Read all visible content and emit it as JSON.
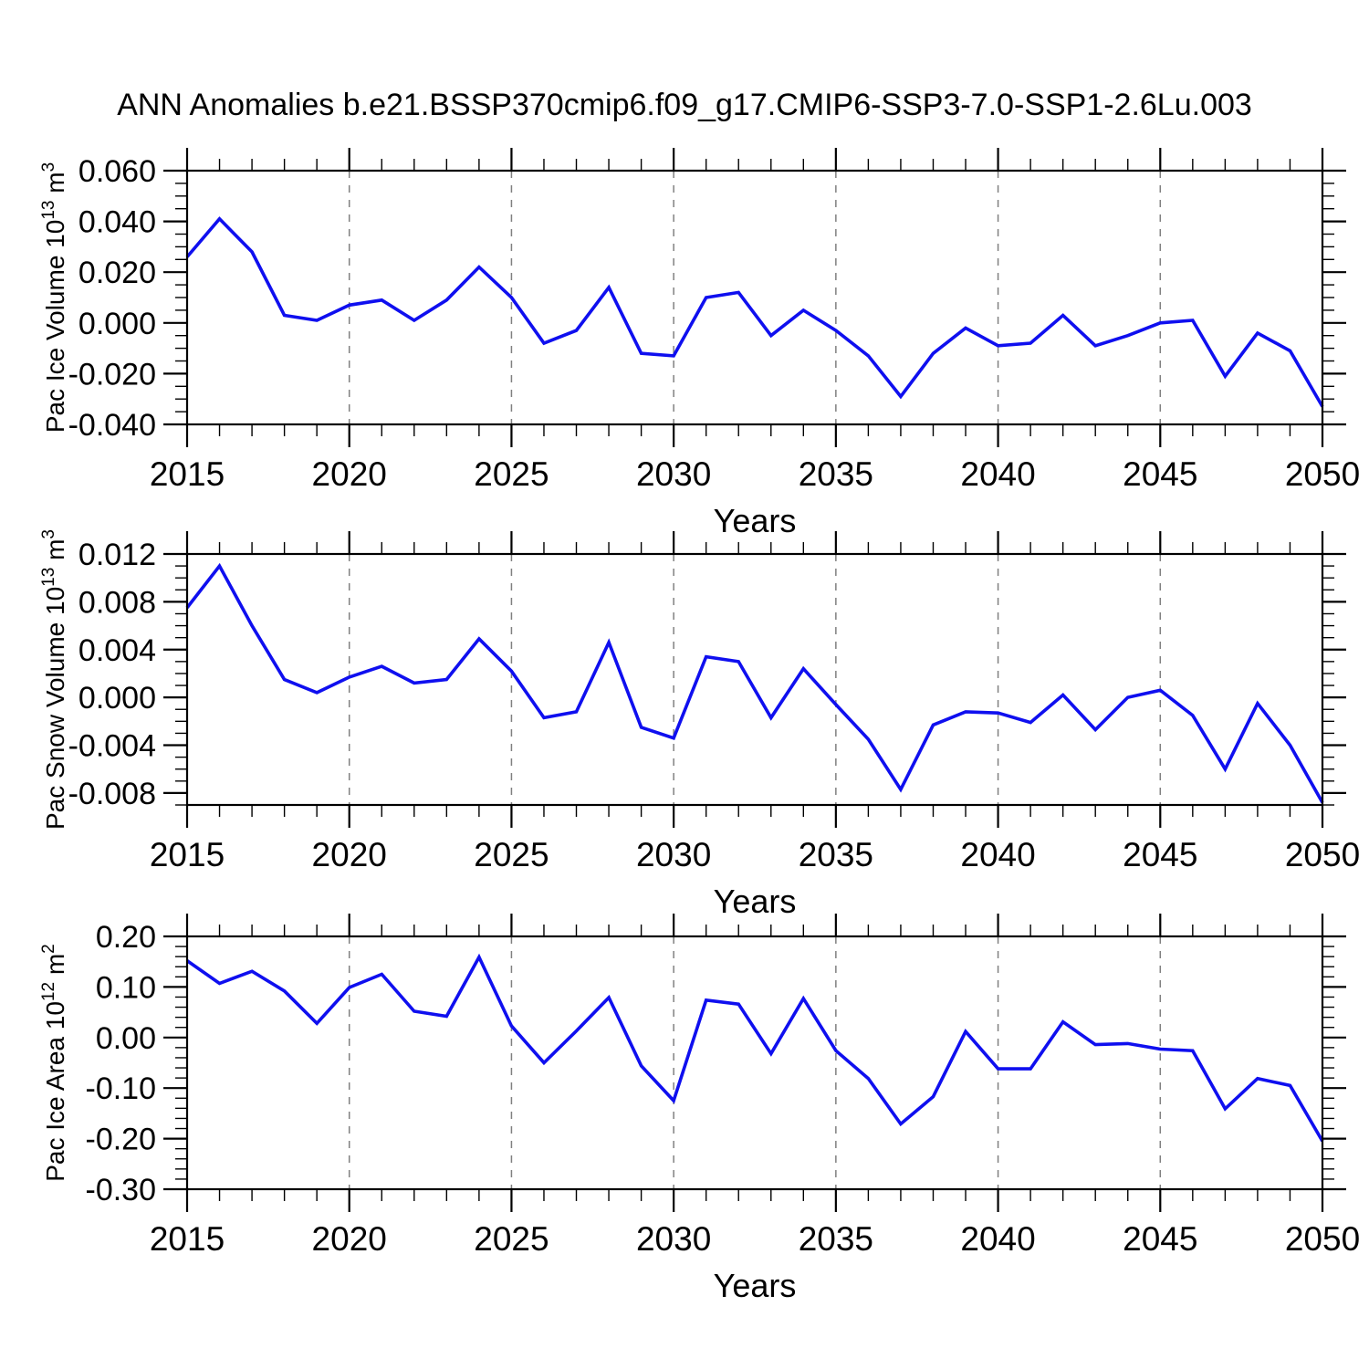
{
  "chart_data": {
    "type": "line",
    "title": "ANN Anomalies b.e21.BSSP370cmip6.f09_g17.CMIP6-SSP3-7.0-SSP1-2.6Lu.003",
    "x_label": "Years",
    "x": [
      2015,
      2016,
      2017,
      2018,
      2019,
      2020,
      2021,
      2022,
      2023,
      2024,
      2025,
      2026,
      2027,
      2028,
      2029,
      2030,
      2031,
      2032,
      2033,
      2034,
      2035,
      2036,
      2037,
      2038,
      2039,
      2040,
      2041,
      2042,
      2043,
      2044,
      2045,
      2046,
      2047,
      2048,
      2049,
      2050
    ],
    "xlim": [
      2015,
      2050
    ],
    "x_major_ticks": [
      2015,
      2020,
      2025,
      2030,
      2035,
      2040,
      2045,
      2050
    ],
    "x_tick_labels": [
      "2015",
      "2020",
      "2025",
      "2030",
      "2035",
      "2040",
      "2045",
      "2050"
    ],
    "x_minor_step": 1,
    "grid_years": [
      2020,
      2025,
      2030,
      2035,
      2040,
      2045
    ],
    "grid_on": true,
    "legend": "none",
    "line_color": "#0f0fef",
    "grid_color": "#808080",
    "axis_color": "#000000",
    "panels": [
      {
        "name": "pac-ice-volume",
        "ylabel": "Pac Ice Volume 10^13 m^3",
        "ylabel_parts": [
          {
            "t": "Pac Ice Volume 10",
            "sup": false
          },
          {
            "t": "13",
            "sup": true
          },
          {
            "t": " m",
            "sup": false
          },
          {
            "t": "3",
            "sup": true
          }
        ],
        "ylim": [
          -0.04,
          0.06
        ],
        "y_major_ticks": [
          0.06,
          0.04,
          0.02,
          0.0,
          -0.02,
          -0.04
        ],
        "y_tick_labels": [
          "0.060",
          "0.040",
          "0.020",
          "0.000",
          "-0.020",
          "-0.040"
        ],
        "y_minor_step": 0.005,
        "values": [
          0.026,
          0.041,
          0.028,
          0.003,
          0.001,
          0.007,
          0.009,
          0.001,
          0.009,
          0.022,
          0.01,
          -0.008,
          -0.003,
          0.014,
          -0.012,
          -0.013,
          0.01,
          0.012,
          -0.005,
          0.005,
          -0.003,
          -0.013,
          -0.029,
          -0.012,
          -0.002,
          -0.009,
          -0.008,
          0.003,
          -0.009,
          -0.005,
          0.0,
          0.001,
          -0.021,
          -0.004,
          -0.011,
          -0.033
        ]
      },
      {
        "name": "pac-snow-volume",
        "ylabel": "Pac Snow Volume 10^13 m^3",
        "ylabel_parts": [
          {
            "t": "Pac Snow Volume 10",
            "sup": false
          },
          {
            "t": "13",
            "sup": true
          },
          {
            "t": " m",
            "sup": false
          },
          {
            "t": "3",
            "sup": true
          }
        ],
        "ylim": [
          -0.009,
          0.012
        ],
        "y_major_ticks": [
          0.012,
          0.008,
          0.004,
          0.0,
          -0.004,
          -0.008
        ],
        "y_tick_labels": [
          "0.012",
          "0.008",
          "0.004",
          "0.000",
          "-0.004",
          "-0.008"
        ],
        "y_minor_step": 0.001,
        "values": [
          0.0075,
          0.011,
          0.006,
          0.0015,
          0.0004,
          0.0017,
          0.0026,
          0.0012,
          0.0015,
          0.0049,
          0.0022,
          -0.0017,
          -0.0012,
          0.0046,
          -0.0025,
          -0.0034,
          0.0034,
          0.003,
          -0.0017,
          0.0024,
          -0.0006,
          -0.0035,
          -0.0077,
          -0.0023,
          -0.0012,
          -0.0013,
          -0.0021,
          0.0002,
          -0.0027,
          0.0,
          0.0006,
          -0.0015,
          -0.006,
          -0.0005,
          -0.004,
          -0.0088
        ]
      },
      {
        "name": "pac-ice-area",
        "ylabel": "Pac Ice Area 10^12 m^2",
        "ylabel_parts": [
          {
            "t": "Pac Ice Area 10",
            "sup": false
          },
          {
            "t": "12",
            "sup": true
          },
          {
            "t": " m",
            "sup": false
          },
          {
            "t": "2",
            "sup": true
          }
        ],
        "ylim": [
          -0.3,
          0.2
        ],
        "y_major_ticks": [
          0.2,
          0.1,
          0.0,
          -0.1,
          -0.2,
          -0.3
        ],
        "y_tick_labels": [
          "0.20",
          "0.10",
          "0.00",
          "-0.10",
          "-0.20",
          "-0.30"
        ],
        "y_minor_step": 0.02,
        "values": [
          0.152,
          0.107,
          0.131,
          0.092,
          0.028,
          0.099,
          0.125,
          0.052,
          0.042,
          0.159,
          0.023,
          -0.05,
          0.013,
          0.079,
          -0.056,
          -0.125,
          0.074,
          0.066,
          -0.032,
          0.077,
          -0.026,
          -0.081,
          -0.171,
          -0.117,
          0.012,
          -0.062,
          -0.062,
          0.031,
          -0.014,
          -0.012,
          -0.023,
          -0.026,
          -0.141,
          -0.081,
          -0.095,
          -0.205
        ]
      }
    ]
  }
}
